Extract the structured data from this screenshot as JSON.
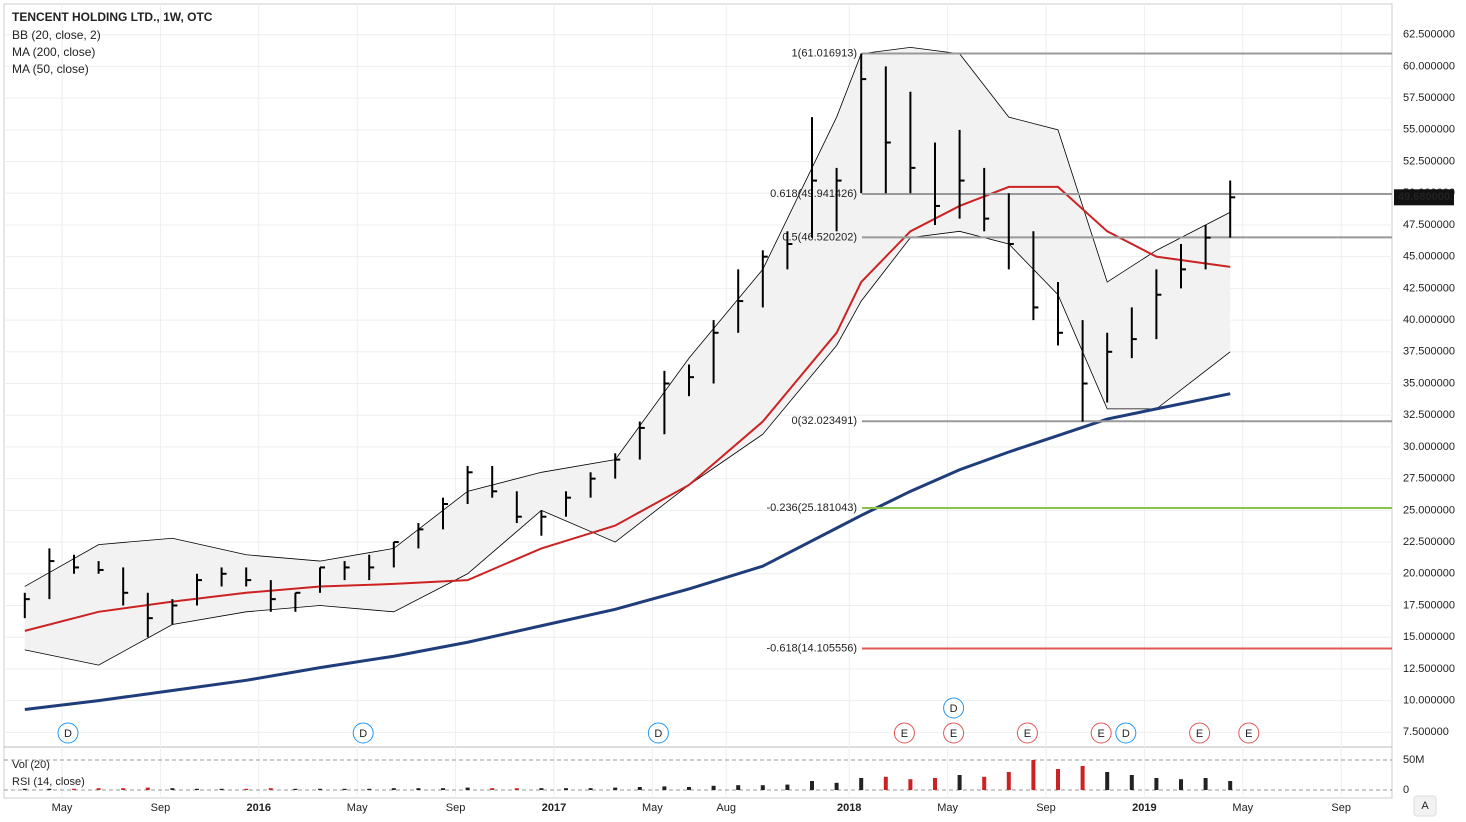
{
  "header": {
    "title": "TENCENT HOLDING LTD., 1W, OTC"
  },
  "chart_data": {
    "type": "ohlc",
    "color": "#000000",
    "x": [
      "2015-03",
      "2015-04",
      "2015-05",
      "2015-06",
      "2015-07",
      "2015-08",
      "2015-09",
      "2015-10",
      "2015-11",
      "2015-12",
      "2016-01",
      "2016-02",
      "2016-03",
      "2016-04",
      "2016-05",
      "2016-06",
      "2016-07",
      "2016-08",
      "2016-09",
      "2016-10",
      "2016-11",
      "2016-12",
      "2017-01",
      "2017-02",
      "2017-03",
      "2017-04",
      "2017-05",
      "2017-06",
      "2017-07",
      "2017-08",
      "2017-09",
      "2017-10",
      "2017-11",
      "2017-12",
      "2018-01",
      "2018-02",
      "2018-03",
      "2018-04",
      "2018-05",
      "2018-06",
      "2018-07",
      "2018-08",
      "2018-09",
      "2018-10",
      "2018-11",
      "2018-12",
      "2019-01",
      "2019-02",
      "2019-03",
      "2019-04"
    ],
    "high": [
      18.5,
      22,
      21.5,
      21,
      20.5,
      18.5,
      18,
      20,
      20.5,
      20.5,
      19.5,
      18.5,
      20.5,
      21,
      21.5,
      22.5,
      24,
      26,
      28.5,
      28.5,
      26.5,
      25,
      26.5,
      28,
      29.5,
      32,
      36,
      36.5,
      40,
      44,
      45.5,
      47,
      56,
      52,
      61,
      60,
      58,
      54,
      55,
      52,
      50,
      47,
      43,
      40,
      39,
      41,
      44,
      46,
      47.5,
      51
    ],
    "low": [
      16.5,
      18,
      20,
      20,
      17.5,
      15,
      16,
      17.5,
      19,
      19,
      17,
      17,
      18.5,
      19.5,
      19.5,
      20.5,
      22,
      23.5,
      25.5,
      26,
      24,
      23,
      24.5,
      26,
      27.5,
      29,
      31,
      34,
      35,
      39,
      41,
      44,
      46.5,
      47,
      50,
      50,
      50,
      47.5,
      48,
      47,
      44,
      40,
      38,
      32,
      33.5,
      37,
      38.5,
      42.5,
      44,
      46.5
    ],
    "close": [
      18,
      21,
      20.5,
      20.3,
      18.5,
      16.5,
      17.5,
      19.5,
      20,
      19.5,
      18,
      18.5,
      20.5,
      20.5,
      20.5,
      22.5,
      23.5,
      25.5,
      28,
      26.5,
      24.5,
      24.5,
      26,
      27.5,
      29,
      31.5,
      35,
      35.5,
      39,
      41.5,
      45,
      46,
      51,
      51,
      59,
      54,
      52,
      49,
      51,
      48,
      46,
      41,
      39,
      35,
      37.5,
      38.5,
      42,
      44,
      46.5,
      49.68
    ],
    "last_price": {
      "value": 49.68,
      "label": "49.680000"
    },
    "lines": [
      {
        "name": "BB (20, close, 2)",
        "color": "#000000",
        "x": [
          "2015-03",
          "2015-06",
          "2015-09",
          "2015-12",
          "2016-03",
          "2016-06",
          "2016-09",
          "2016-12",
          "2017-03",
          "2017-06",
          "2017-09",
          "2017-12",
          "2018-01",
          "2018-03",
          "2018-05",
          "2018-07",
          "2018-09",
          "2018-11",
          "2019-01",
          "2019-04"
        ],
        "upper": [
          19,
          22.3,
          22.8,
          21.5,
          21,
          22,
          26.5,
          28,
          29,
          37,
          44,
          56,
          61,
          61.5,
          61,
          56,
          55,
          43,
          45.5,
          48.5
        ],
        "lower": [
          14,
          12.8,
          16,
          17,
          17.5,
          17,
          20,
          25,
          22.5,
          27,
          31,
          38,
          41.5,
          46.5,
          47,
          46,
          42,
          33,
          33,
          37.5
        ]
      },
      {
        "name": "MA (200, close)",
        "color": "#1f3d7a",
        "x": [
          "2015-03",
          "2015-06",
          "2015-09",
          "2015-12",
          "2016-03",
          "2016-06",
          "2016-09",
          "2016-12",
          "2017-03",
          "2017-06",
          "2017-09",
          "2017-12",
          "2018-01",
          "2018-03",
          "2018-05",
          "2018-07",
          "2018-09",
          "2018-11",
          "2019-01",
          "2019-04"
        ],
        "values": [
          9.3,
          10,
          10.8,
          11.6,
          12.6,
          13.5,
          14.6,
          15.9,
          17.2,
          18.8,
          20.6,
          23.6,
          24.6,
          26.5,
          28.2,
          29.6,
          30.9,
          32.2,
          33,
          34.2
        ]
      },
      {
        "name": "MA (50, close)",
        "color": "#cc2222",
        "x": [
          "2015-03",
          "2015-06",
          "2015-09",
          "2015-12",
          "2016-03",
          "2016-06",
          "2016-09",
          "2016-12",
          "2017-03",
          "2017-06",
          "2017-09",
          "2017-12",
          "2018-01",
          "2018-03",
          "2018-05",
          "2018-07",
          "2018-09",
          "2018-11",
          "2019-01",
          "2019-04"
        ],
        "values": [
          15.5,
          17,
          17.8,
          18.5,
          19,
          19.2,
          19.5,
          22,
          23.8,
          27,
          32,
          39,
          43,
          47,
          49,
          50.5,
          50.5,
          47,
          45,
          44.2
        ]
      }
    ],
    "fib": [
      {
        "label": "1(61.016913)",
        "value": 61.016913,
        "color": "#999999"
      },
      {
        "label": "0.618(49.941426)",
        "value": 49.941426,
        "color": "#999999"
      },
      {
        "label": "0.5(46.520202)",
        "value": 46.520202,
        "color": "#999999"
      },
      {
        "label": "0(32.023491)",
        "value": 32.023491,
        "color": "#999999"
      },
      {
        "label": "-0.236(25.181043)",
        "value": 25.181043,
        "color": "#8bc34a"
      },
      {
        "label": "-0.618(14.105556)",
        "value": 14.105556,
        "color": "#e05555"
      }
    ],
    "events": [
      {
        "label": "D",
        "x": "2015-05"
      },
      {
        "label": "D",
        "x": "2016-05"
      },
      {
        "label": "D",
        "x": "2017-05"
      },
      {
        "label": "E",
        "x": "2018-03"
      },
      {
        "label": "E",
        "x": "2018-05"
      },
      {
        "label": "D",
        "x": "2018-05"
      },
      {
        "label": "E",
        "x": "2018-08"
      },
      {
        "label": "E",
        "x": "2018-11"
      },
      {
        "label": "D",
        "x": "2018-12"
      },
      {
        "label": "E",
        "x": "2019-03"
      },
      {
        "label": "E",
        "x": "2019-05"
      }
    ],
    "ylim": [
      6.5,
      65
    ],
    "yticks": [
      {
        "value": 7.5,
        "label": "7.500000"
      },
      {
        "value": 10,
        "label": "10.000000"
      },
      {
        "value": 12.5,
        "label": "12.500000"
      },
      {
        "value": 15,
        "label": "15.000000"
      },
      {
        "value": 17.5,
        "label": "17.500000"
      },
      {
        "value": 20,
        "label": "20.000000"
      },
      {
        "value": 22.5,
        "label": "22.500000"
      },
      {
        "value": 25,
        "label": "25.000000"
      },
      {
        "value": 27.5,
        "label": "27.500000"
      },
      {
        "value": 30,
        "label": "30.000000"
      },
      {
        "value": 32.5,
        "label": "32.500000"
      },
      {
        "value": 35,
        "label": "35.000000"
      },
      {
        "value": 37.5,
        "label": "37.500000"
      },
      {
        "value": 40,
        "label": "40.000000"
      },
      {
        "value": 42.5,
        "label": "42.500000"
      },
      {
        "value": 45,
        "label": "45.000000"
      },
      {
        "value": 47.5,
        "label": "47.500000"
      },
      {
        "value": 50,
        "label": "50.000000"
      },
      {
        "value": 52.5,
        "label": "52.500000"
      },
      {
        "value": 55,
        "label": "55.000000"
      },
      {
        "value": 57.5,
        "label": "57.500000"
      },
      {
        "value": 60,
        "label": "60.000000"
      },
      {
        "value": 62.5,
        "label": "62.500000"
      }
    ],
    "xticks": [
      {
        "value": "2015-05",
        "label": "May"
      },
      {
        "value": "2015-09",
        "label": "Sep"
      },
      {
        "value": "2016-01",
        "label": "2016"
      },
      {
        "value": "2016-05",
        "label": "May"
      },
      {
        "value": "2016-09",
        "label": "Sep"
      },
      {
        "value": "2017-01",
        "label": "2017"
      },
      {
        "value": "2017-05",
        "label": "May"
      },
      {
        "value": "2017-08",
        "label": "Aug"
      },
      {
        "value": "2018-01",
        "label": "2018"
      },
      {
        "value": "2018-05",
        "label": "May"
      },
      {
        "value": "2018-09",
        "label": "Sep"
      },
      {
        "value": "2019-01",
        "label": "2019"
      },
      {
        "value": "2019-05",
        "label": "May"
      },
      {
        "value": "2019-09",
        "label": "Sep"
      }
    ],
    "grid": true,
    "volume": {
      "title": "Vol (20)",
      "rsi_title": "RSI (14, close)",
      "up_color": "#222222",
      "down_color": "#cc2222",
      "values": [
        2,
        2,
        2,
        3,
        3,
        4,
        3,
        2,
        2,
        2,
        3,
        2,
        2,
        2,
        2,
        3,
        3,
        3,
        4,
        3,
        3,
        3,
        3,
        3,
        4,
        5,
        6,
        5,
        7,
        8,
        8,
        9,
        15,
        12,
        20,
        22,
        18,
        20,
        25,
        22,
        30,
        50,
        35,
        40,
        30,
        25,
        20,
        18,
        20,
        15
      ],
      "ylim": [
        0,
        70
      ],
      "yticks": [
        0,
        {
          "value": 50,
          "label": "50M"
        }
      ]
    },
    "scale_button": "A"
  }
}
